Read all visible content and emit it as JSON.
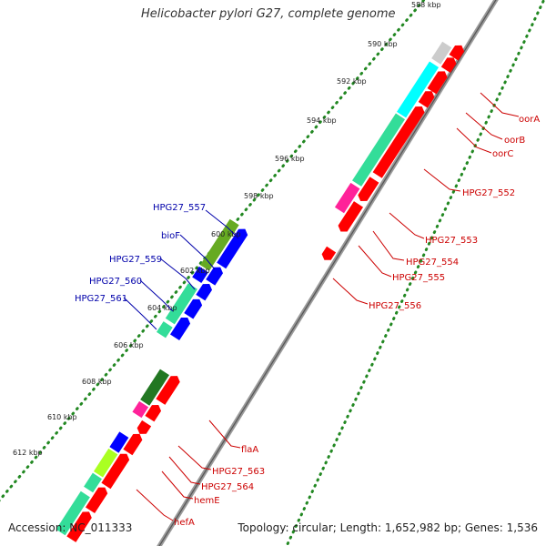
{
  "title": "Helicobacter pylori G27, complete genome",
  "footer": {
    "accession": "Accession: NC_011333",
    "stats": "Topology: circular; Length: 1,652,982 bp; Genes: 1,536"
  },
  "colors": {
    "red": "#ff0000",
    "blue": "#0000ff",
    "cyan": "#00ffff",
    "mint": "#33dd99",
    "green": "#227722",
    "olive": "#66aa22",
    "lime": "#aaff22",
    "magenta": "#ff2299",
    "grey": "#cccccc",
    "axis": "#777777",
    "dots": "#228822",
    "label_red": "#cc0000",
    "label_blue": "#0000aa"
  },
  "ticks": [
    "588 kbp",
    "590 kbp",
    "592 kbp",
    "594 kbp",
    "596 kbp",
    "598 kbp",
    "600 kbp",
    "602 kbp",
    "604 kbp",
    "606 kbp",
    "608 kbp",
    "610 kbp",
    "612 kbp"
  ],
  "labels_red": [
    "oorA",
    "oorB",
    "oorC",
    "HPG27_552",
    "HPG27_553",
    "HPG27_554",
    "HPG27_555",
    "HPG27_556",
    "flaA",
    "HPG27_563",
    "HPG27_564",
    "hemE",
    "hefA"
  ],
  "labels_blue": [
    "HPG27_557",
    "bioF",
    "HPG27_559",
    "HPG27_560",
    "HPG27_561"
  ]
}
